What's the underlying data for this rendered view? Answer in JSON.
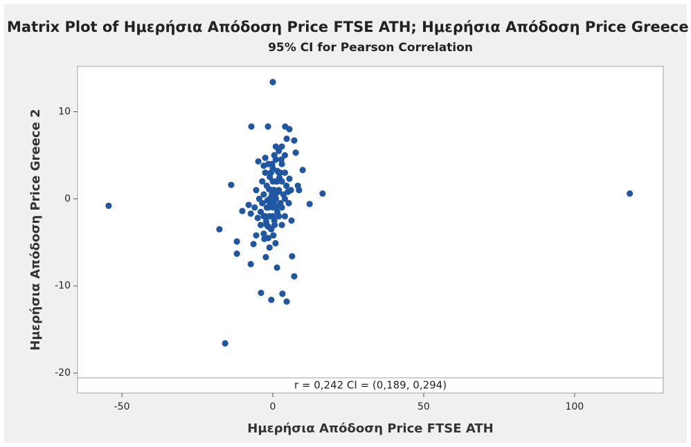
{
  "chart_data": {
    "type": "scatter",
    "title": "Matrix Plot of Ημερήσια Απόδοση Price FTSE ATH; Ημερήσια Απόδοση Price Greece 2",
    "subtitle": "95% CI for Pearson Correlation",
    "x_label": "Ημερήσια Απόδοση Price FTSE ATH",
    "y_label": "Ημερήσια Απόδοση Price Greece 2",
    "annotation": "r = 0,242  CI = (0,189, 0,294)",
    "color": "#1f57a4",
    "xlim": [
      -64.7,
      129.4
    ],
    "ylim": [
      -22.3,
      15.2
    ],
    "xticks": [
      -50,
      0,
      50,
      100
    ],
    "yticks": [
      -20,
      -10,
      0,
      10
    ],
    "grid": false,
    "x": [
      -54.4,
      118.3,
      0,
      -15.8,
      -7.1,
      -1.6,
      4.1,
      5.5,
      -13.8,
      -17.7,
      -11.9,
      -11.9,
      -10.1,
      -7.3,
      -3.9,
      -0.5,
      3.2,
      4.6,
      1.4,
      6.4,
      7.1,
      16.5,
      12.2,
      9.9,
      8.3,
      8.7,
      7.6,
      7.1,
      4.6,
      -2.5,
      -4.8,
      -8.0,
      -7.3,
      -5.5,
      -6.4,
      -2.3,
      -1.1,
      0.9,
      6.2,
      5.3,
      -4,
      -3,
      -2,
      -1,
      0,
      1,
      2,
      3,
      4,
      -3,
      -2,
      -1,
      0,
      1,
      2,
      3,
      -4,
      -3,
      -2,
      -1,
      0,
      1,
      2,
      3,
      4,
      -1.5,
      -0.5,
      0.5,
      1.5,
      2.5,
      3.5,
      4.5,
      -2.5,
      -1.5,
      -0.5,
      0.5,
      1.5,
      2.5,
      -3.5,
      -2.5,
      -1.5,
      0.5,
      1,
      2,
      3,
      4,
      -4.5,
      -3.5,
      0,
      0.3,
      -0.3,
      0.8,
      -0.8,
      1.2,
      -1.2,
      0,
      0,
      0.6,
      -0.6,
      1.8,
      -1.8,
      2.2,
      -2.2,
      3,
      -3,
      4,
      5,
      5.5,
      -5,
      -5.5,
      0.2,
      -0.2,
      1.5,
      -1.5,
      2.8,
      -2.8,
      6,
      -6
    ],
    "y": [
      -0.8,
      0.6,
      13.4,
      -16.6,
      8.3,
      8.3,
      8.3,
      8.0,
      1.6,
      -3.5,
      -4.9,
      -6.3,
      -1.4,
      -7.5,
      -10.8,
      -11.6,
      -10.9,
      -11.8,
      -7.9,
      -6.6,
      -8.9,
      0.6,
      -0.6,
      3.3,
      1.5,
      1.0,
      5.3,
      6.7,
      6.9,
      4.7,
      4.3,
      -0.7,
      -1.7,
      -4.2,
      -5.2,
      -6.7,
      -5.6,
      -5.1,
      -2.5,
      -0.5,
      -3,
      -2,
      -1,
      0,
      1,
      2,
      3,
      4,
      5,
      0.5,
      1.5,
      2.5,
      3.5,
      4.5,
      5.5,
      6,
      -1.5,
      -4,
      -3,
      -2,
      -1,
      0,
      1,
      2,
      3,
      -4.5,
      -3.5,
      -2.5,
      -1.5,
      -0.5,
      0.5,
      1.5,
      -2,
      -1,
      0,
      1,
      2,
      3,
      2,
      3,
      4,
      5,
      6,
      -2,
      -1,
      0,
      0,
      -0.5,
      0,
      -0.4,
      0.5,
      0.3,
      -0.6,
      -0.9,
      1.1,
      2,
      -2,
      -3,
      3,
      0.8,
      -0.2,
      2.4,
      -2.6,
      -3,
      3.8,
      -2,
      0.8,
      2.3,
      -2.2,
      1,
      -4.2,
      4,
      3.2,
      -3.2,
      4.5,
      -4.6,
      1,
      -1
    ]
  }
}
